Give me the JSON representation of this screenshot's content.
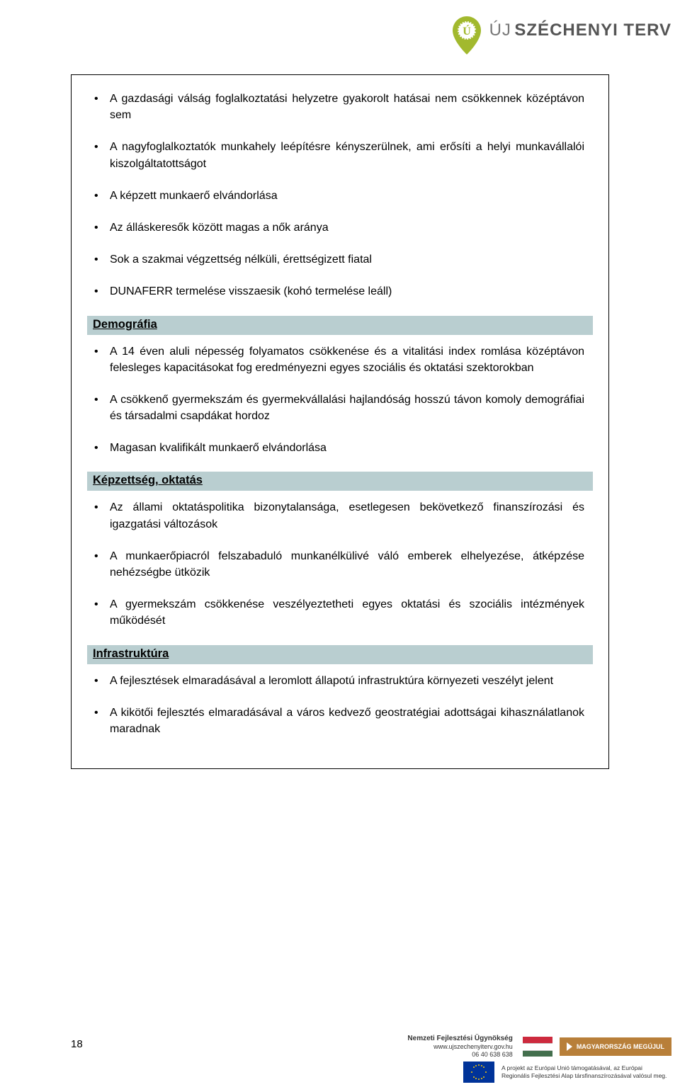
{
  "brand": {
    "prefix": "ÚJ",
    "name": "SZÉCHENYI TERV"
  },
  "sections": [
    {
      "heading": null,
      "items": [
        "A gazdasági válság foglalkoztatási helyzetre gyakorolt hatásai nem csökkennek középtávon sem",
        "A nagyfoglalkoztatók munkahely leépítésre kényszerülnek, ami erősíti a helyi munkavállalói kiszolgáltatottságot",
        "A képzett munkaerő elvándorlása",
        "Az álláskeresők között magas a nők aránya",
        "Sok a szakmai végzettség nélküli, érettségizett fiatal",
        "DUNAFERR termelése visszaesik (kohó termelése leáll)"
      ]
    },
    {
      "heading": "Demográfia",
      "items": [
        "A 14 éven aluli népesség folyamatos csökkenése és a vitalitási index romlása középtávon felesleges kapacitásokat fog eredményezni egyes szociális és oktatási szektorokban",
        "A csökkenő gyermekszám és gyermekvállalási hajlandóság hosszú távon komoly demográfiai és társadalmi csapdákat hordoz",
        "Magasan kvalifikált munkaerő elvándorlása"
      ]
    },
    {
      "heading": "Képzettség, oktatás",
      "items": [
        "Az állami oktatáspolitika bizonytalansága, esetlegesen bekövetkező finanszírozási és igazgatási változások",
        "A munkaerőpiacról felszabaduló munkanélkülivé váló emberek elhelyezése, átképzése nehézségbe ütközik",
        "A gyermekszám csökkenése veszélyeztetheti egyes oktatási és szociális intézmények működését"
      ]
    },
    {
      "heading": "Infrastruktúra",
      "items": [
        "A fejlesztések elmaradásával a leromlott állapotú infrastruktúra környezeti veszélyt jelent",
        "A kikötői fejlesztés elmaradásával a város kedvező geostratégiai adottságai kihasználatlanok maradnak"
      ]
    }
  ],
  "page_number": "18",
  "footer": {
    "nfu_title": "Nemzeti Fejlesztési Ügynökség",
    "nfu_url": "www.ujszechenyiterv.gov.hu",
    "nfu_phone": "06 40 638 638",
    "megujul": "MAGYARORSZÁG MEGÚJUL",
    "eu_text": "A projekt az Európai Unió támogatásával, az Európai Regionális Fejlesztési Alap társfinanszírozásával valósul meg.",
    "flag_colors": [
      "#cd2a3e",
      "#ffffff",
      "#436f4d"
    ]
  },
  "colors": {
    "heading_bg": "#b9ced0",
    "logo_green": "#a2b92e",
    "brand_text": "#555555"
  }
}
